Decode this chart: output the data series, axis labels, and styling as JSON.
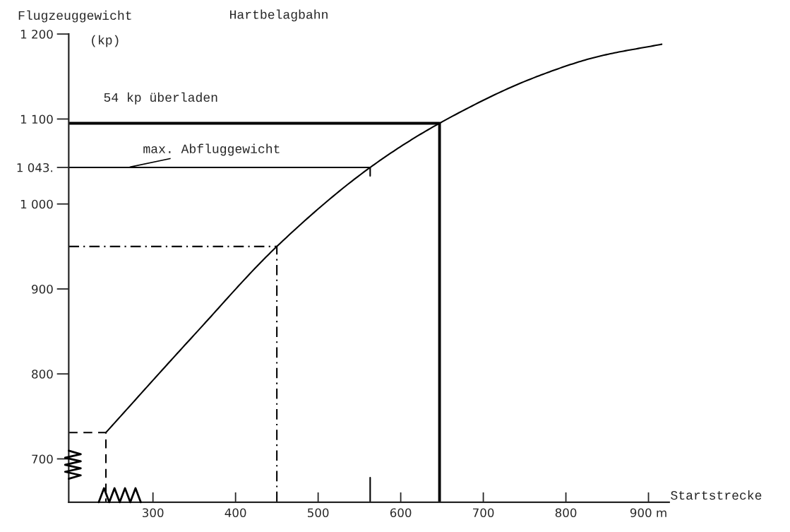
{
  "chart_data": {
    "type": "line",
    "title": "Hartbelagbahn",
    "xlabel": "Startstrecke",
    "ylabel": "Flugzeuggewicht",
    "xlim": [
      198,
      925
    ],
    "ylim": [
      649,
      1200
    ],
    "xticks": [
      300,
      400,
      500,
      600,
      700,
      800,
      {
        "value": 900,
        "label": "900 m"
      }
    ],
    "yticks": [
      700,
      800,
      900,
      {
        "value": 1000,
        "label": "1 000"
      },
      {
        "value": 1043,
        "label": "1 043."
      },
      {
        "value": 1100,
        "label": "1 100"
      },
      {
        "value": 1200,
        "label": "1 200"
      }
    ],
    "grid": false,
    "marker": "none",
    "series": [
      {
        "color": "#000000",
        "line_style": "solid",
        "x": [
          243,
          350,
          450,
          563,
          647,
          765,
          841,
          916
        ],
        "values": [
          731,
          846,
          950,
          1043,
          1095,
          1150,
          1174,
          1188
        ]
      },
      {
        "color": "#000000",
        "line_style": "solid",
        "x": [
          198,
          647,
          647
        ],
        "values": [
          1095,
          1095,
          649
        ]
      },
      {
        "color": "#000000",
        "line_style": "solid",
        "x": [
          198,
          563,
          563
        ],
        "values": [
          1043,
          1043,
          1033
        ]
      },
      {
        "color": "#000000",
        "line_style": "solid",
        "x": [
          563,
          563
        ],
        "values": [
          649,
          678
        ]
      },
      {
        "color": "#000000",
        "line_style": "dashdot",
        "x": [
          198,
          450,
          450
        ],
        "values": [
          950,
          950,
          649
        ]
      },
      {
        "color": "#000000",
        "line_style": "dashed",
        "x": [
          198,
          243,
          243
        ],
        "values": [
          731,
          731,
          649
        ]
      }
    ],
    "annotations": [
      "(kp)",
      {
        "text": "54 kp überladen",
        "x": 240,
        "y": 1095
      },
      {
        "text": "max. Abfluggewicht",
        "x": 270,
        "y": 1043
      }
    ]
  }
}
